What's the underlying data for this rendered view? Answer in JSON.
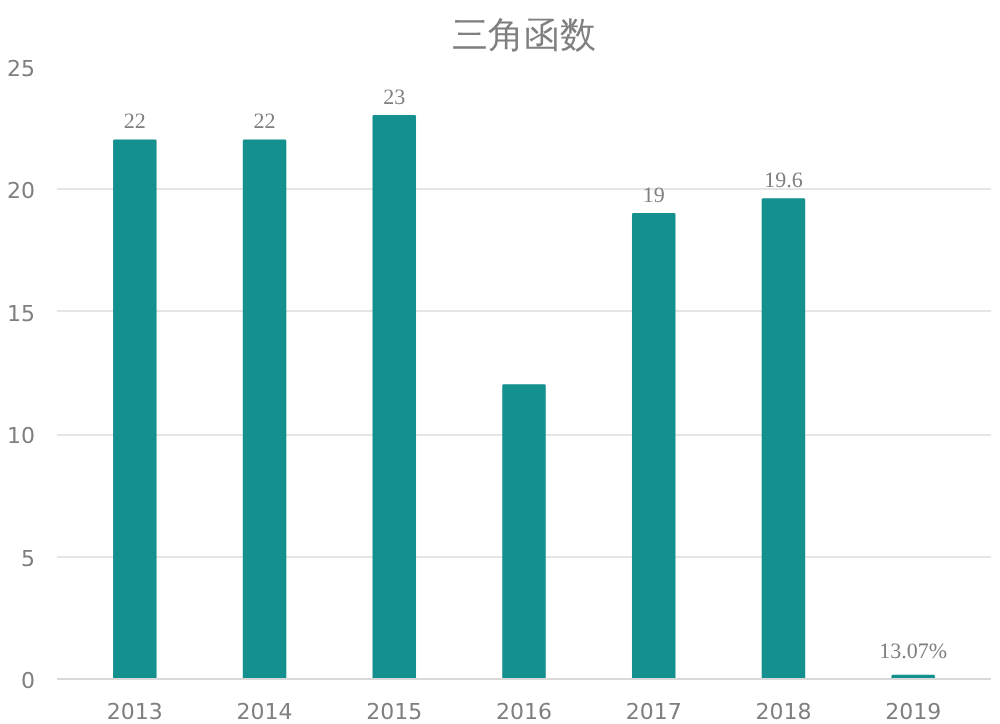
{
  "chart_data": {
    "type": "bar",
    "title": "三角函数",
    "categories": [
      "2013",
      "2014",
      "2015",
      "2016",
      "2017",
      "2018",
      "2019"
    ],
    "values": [
      22,
      22,
      23,
      12,
      19,
      19.6,
      0.1307
    ],
    "value_labels": [
      "22",
      "22",
      "23",
      null,
      "19",
      "19.6",
      "13.07%"
    ],
    "color": "#14918e",
    "ylim": [
      0,
      25
    ],
    "yticks": [
      0,
      5,
      10,
      15,
      20,
      25
    ],
    "grid": "y"
  }
}
